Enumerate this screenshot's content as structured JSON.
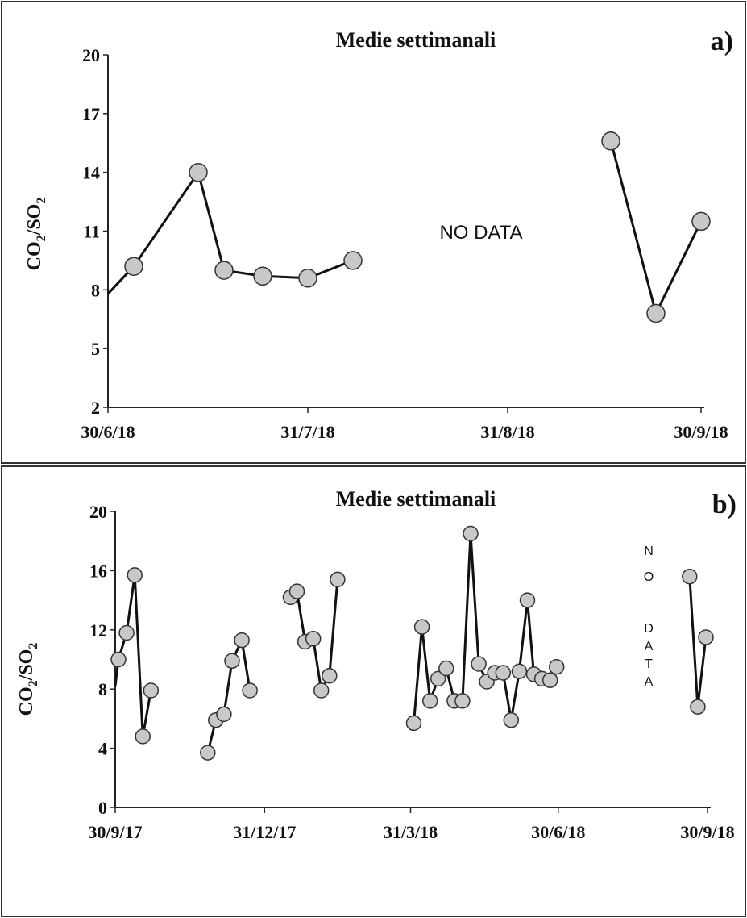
{
  "chart_data": [
    {
      "type": "line",
      "panel": "a)",
      "title": "Medie settimanali",
      "ylabel_parts": [
        "CO",
        "2",
        "/SO",
        "2"
      ],
      "annotation": "NO DATA",
      "x_ticks": [
        "30/6/18",
        "31/7/18",
        "31/8/18",
        "30/9/18"
      ],
      "y_ticks": [
        2,
        5,
        8,
        11,
        14,
        17,
        20
      ],
      "ylim": [
        2,
        20
      ],
      "xlim": [
        "2018-06-30",
        "2018-09-30"
      ],
      "marker_color": "#c8c8c8",
      "line_color": "#111111",
      "series": [
        {
          "segments": [
            {
              "start_from": {
                "x": "2018-06-30",
                "y": 7.8
              },
              "points": [
                {
                  "x": "2018-07-04",
                  "y": 9.2
                },
                {
                  "x": "2018-07-14",
                  "y": 14.0
                },
                {
                  "x": "2018-07-18",
                  "y": 9.0
                },
                {
                  "x": "2018-07-24",
                  "y": 8.7
                },
                {
                  "x": "2018-07-31",
                  "y": 8.6
                },
                {
                  "x": "2018-08-07",
                  "y": 9.5
                }
              ]
            },
            {
              "points": [
                {
                  "x": "2018-09-16",
                  "y": 15.6
                },
                {
                  "x": "2018-09-23",
                  "y": 6.8
                },
                {
                  "x": "2018-09-30",
                  "y": 11.5
                }
              ]
            }
          ]
        }
      ]
    },
    {
      "type": "line",
      "panel": "b)",
      "title": "Medie settimanali",
      "ylabel_parts": [
        "CO",
        "2",
        "/SO",
        "2"
      ],
      "annotation_vertical": [
        "N",
        "O",
        "",
        "D",
        "A",
        "T",
        "A"
      ],
      "x_ticks": [
        "30/9/17",
        "31/12/17",
        "31/3/18",
        "30/6/18",
        "30/9/18"
      ],
      "y_ticks": [
        0,
        4,
        8,
        12,
        16,
        20
      ],
      "ylim": [
        0,
        20
      ],
      "xlim": [
        "2017-09-30",
        "2018-09-30"
      ],
      "marker_color": "#c8c8c8",
      "line_color": "#111111",
      "series": [
        {
          "segments": [
            {
              "start_from": {
                "x": "2017-09-30",
                "y": 8.2
              },
              "points": [
                {
                  "x": "2017-10-02",
                  "y": 10.0
                },
                {
                  "x": "2017-10-07",
                  "y": 11.8
                },
                {
                  "x": "2017-10-12",
                  "y": 15.7
                },
                {
                  "x": "2017-10-17",
                  "y": 4.8
                },
                {
                  "x": "2017-10-22",
                  "y": 7.9
                }
              ]
            },
            {
              "points": [
                {
                  "x": "2017-11-26",
                  "y": 3.7
                },
                {
                  "x": "2017-12-01",
                  "y": 5.9
                },
                {
                  "x": "2017-12-06",
                  "y": 6.3
                },
                {
                  "x": "2017-12-11",
                  "y": 9.9
                },
                {
                  "x": "2017-12-17",
                  "y": 11.3
                },
                {
                  "x": "2017-12-22",
                  "y": 7.9
                }
              ]
            },
            {
              "points": [
                {
                  "x": "2018-01-16",
                  "y": 14.2
                },
                {
                  "x": "2018-01-20",
                  "y": 14.6
                },
                {
                  "x": "2018-01-25",
                  "y": 11.2
                },
                {
                  "x": "2018-01-30",
                  "y": 11.4
                },
                {
                  "x": "2018-02-04",
                  "y": 7.9
                },
                {
                  "x": "2018-02-09",
                  "y": 8.9
                },
                {
                  "x": "2018-02-14",
                  "y": 15.4
                }
              ]
            },
            {
              "points": [
                {
                  "x": "2018-04-02",
                  "y": 5.7
                },
                {
                  "x": "2018-04-07",
                  "y": 12.2
                },
                {
                  "x": "2018-04-12",
                  "y": 7.2
                },
                {
                  "x": "2018-04-17",
                  "y": 8.7
                },
                {
                  "x": "2018-04-22",
                  "y": 9.4
                },
                {
                  "x": "2018-04-27",
                  "y": 7.2
                },
                {
                  "x": "2018-05-02",
                  "y": 7.2
                },
                {
                  "x": "2018-05-07",
                  "y": 18.5
                },
                {
                  "x": "2018-05-12",
                  "y": 9.7
                },
                {
                  "x": "2018-05-17",
                  "y": 8.5
                },
                {
                  "x": "2018-05-22",
                  "y": 9.1
                },
                {
                  "x": "2018-05-27",
                  "y": 9.1
                },
                {
                  "x": "2018-06-01",
                  "y": 5.9
                },
                {
                  "x": "2018-06-06",
                  "y": 9.2
                },
                {
                  "x": "2018-06-11",
                  "y": 14.0
                },
                {
                  "x": "2018-06-15",
                  "y": 9.0
                },
                {
                  "x": "2018-06-20",
                  "y": 8.7
                },
                {
                  "x": "2018-06-25",
                  "y": 8.6
                },
                {
                  "x": "2018-06-29",
                  "y": 9.5
                }
              ]
            },
            {
              "points": [
                {
                  "x": "2018-09-19",
                  "y": 15.6
                },
                {
                  "x": "2018-09-24",
                  "y": 6.8
                },
                {
                  "x": "2018-09-29",
                  "y": 11.5
                }
              ]
            }
          ]
        }
      ]
    }
  ]
}
